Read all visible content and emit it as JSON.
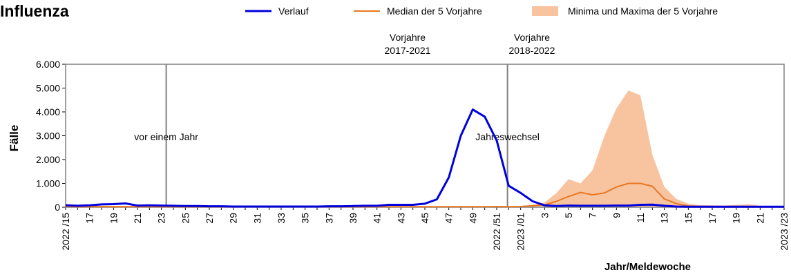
{
  "chart_data": {
    "type": "line",
    "title": "Influenza",
    "y_label": "Fälle",
    "x_label": "Jahr/Meldewoche",
    "annotations": [
      {
        "lines": [
          "Vorjahre",
          "2017-2021"
        ],
        "text": "vor einem Jahr"
      },
      {
        "lines": [
          "Vorjahre",
          "2018-2022"
        ],
        "text": "Jahreswechsel"
      }
    ],
    "categories": [
      "2022 /15",
      null,
      "17",
      null,
      "19",
      null,
      "21",
      null,
      "23",
      null,
      "25",
      null,
      "27",
      null,
      "29",
      null,
      "31",
      null,
      "33",
      null,
      "35",
      null,
      "37",
      null,
      "39",
      null,
      "41",
      null,
      "43",
      null,
      "45",
      null,
      "47",
      null,
      "49",
      null,
      "2022 /51",
      null,
      "2023 /01",
      null,
      "3",
      null,
      "5",
      null,
      "7",
      null,
      "9",
      null,
      "11",
      null,
      "13",
      null,
      "15",
      null,
      "17",
      null,
      "19",
      null,
      "21",
      null,
      "2023 /23"
    ],
    "ylim": [
      0,
      6000
    ],
    "yticks": [
      0,
      {
        "value": 1000,
        "label": "1.000"
      },
      {
        "value": 2000,
        "label": "2.000"
      },
      {
        "value": 3000,
        "label": "3.000"
      },
      {
        "value": 4000,
        "label": "4.000"
      },
      {
        "value": 5000,
        "label": "5.000"
      },
      {
        "value": 6000,
        "label": "6.000"
      }
    ],
    "band": {
      "name": "Minima und Maxima der 5 Vorjahre",
      "color": "#f8c4a0",
      "upper": [
        150,
        100,
        80,
        60,
        60,
        60,
        50,
        50,
        50,
        40,
        40,
        40,
        40,
        40,
        40,
        40,
        40,
        40,
        40,
        40,
        40,
        40,
        40,
        40,
        40,
        40,
        40,
        40,
        40,
        40,
        40,
        40,
        40,
        40,
        40,
        40,
        40,
        40,
        50,
        100,
        200,
        600,
        1180,
        1000,
        1550,
        3000,
        4150,
        4900,
        4700,
        2200,
        850,
        350,
        150,
        80,
        80,
        70,
        100,
        130,
        60,
        40,
        30
      ],
      "lower": [
        0,
        0,
        0,
        0,
        0,
        0,
        0,
        0,
        0,
        0,
        0,
        0,
        0,
        0,
        0,
        0,
        0,
        0,
        0,
        0,
        0,
        0,
        0,
        0,
        0,
        0,
        0,
        0,
        0,
        0,
        0,
        0,
        0,
        0,
        0,
        0,
        0,
        0,
        0,
        0,
        0,
        0,
        0,
        0,
        0,
        0,
        0,
        0,
        0,
        0,
        0,
        0,
        0,
        0,
        0,
        0,
        0,
        0,
        0,
        0,
        0
      ]
    },
    "series": [
      {
        "name": "Verlauf",
        "color": "#0000dd",
        "width": 3,
        "values": [
          80,
          60,
          80,
          120,
          130,
          160,
          70,
          80,
          70,
          60,
          50,
          50,
          40,
          40,
          30,
          30,
          30,
          30,
          30,
          30,
          30,
          30,
          40,
          40,
          50,
          60,
          60,
          100,
          100,
          100,
          150,
          330,
          1250,
          3000,
          4100,
          3800,
          2800,
          900,
          600,
          250,
          80,
          50,
          70,
          60,
          60,
          60,
          70,
          70,
          100,
          110,
          60,
          30,
          20,
          20,
          20,
          20,
          20,
          20,
          20,
          20,
          20
        ]
      },
      {
        "name": "Median der 5 Vorjahre",
        "color": "#e87722",
        "width": 2,
        "values": [
          30,
          20,
          20,
          20,
          20,
          20,
          20,
          20,
          20,
          20,
          20,
          20,
          20,
          20,
          20,
          20,
          20,
          20,
          20,
          20,
          20,
          20,
          20,
          20,
          20,
          20,
          20,
          20,
          20,
          20,
          20,
          20,
          20,
          20,
          20,
          20,
          30,
          20,
          30,
          60,
          100,
          250,
          450,
          620,
          520,
          600,
          850,
          1000,
          1000,
          880,
          350,
          150,
          50,
          40,
          30,
          30,
          30,
          30,
          30,
          30,
          30
        ]
      }
    ]
  }
}
